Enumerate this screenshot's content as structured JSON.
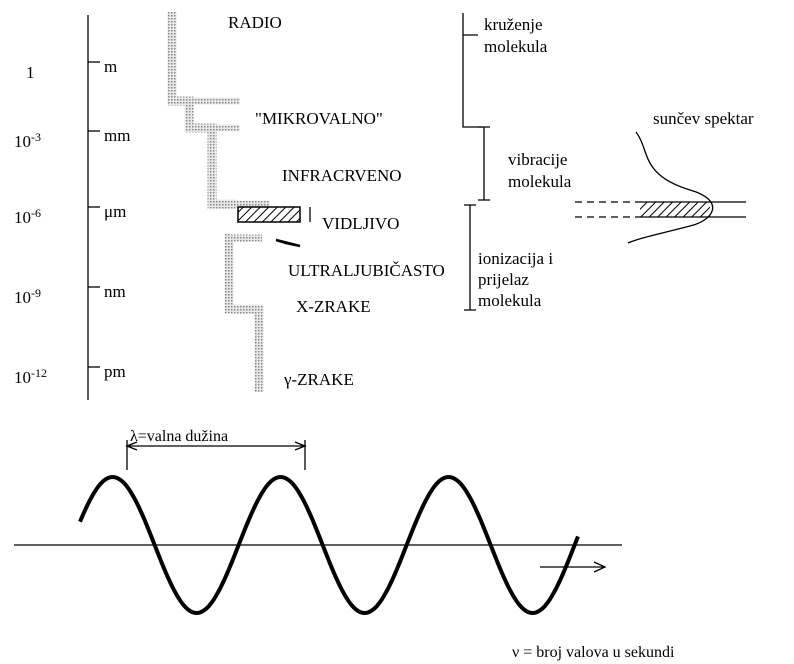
{
  "scale": [
    {
      "number": "1",
      "unit": "m"
    },
    {
      "number": "10",
      "exponent": "-3",
      "unit": "mm"
    },
    {
      "number": "10",
      "exponent": "-6",
      "unit": "μm"
    },
    {
      "number": "10",
      "exponent": "-9",
      "unit": "nm"
    },
    {
      "number": "10",
      "exponent": "-12",
      "unit": "pm"
    }
  ],
  "regions": [
    "RADIO",
    "\"MIKROVALNO\"",
    "INFRACRVENO",
    "VIDLJIVO",
    "ULTRALJUBIČASTO",
    "X-ZRAKE",
    "γ-ZRAKE"
  ],
  "effects": [
    {
      "lines": [
        "kruženje",
        "molekula"
      ]
    },
    {
      "lines": [
        "vibracije",
        "molekula"
      ]
    },
    {
      "lines": [
        "ionizacija i",
        "prijelaz",
        "molekula"
      ]
    }
  ],
  "sun_spectrum": "sunčev spektar",
  "wave": {
    "wavelength": "λ=valna dužina",
    "frequency": "ν = broj valova u sekundi"
  }
}
